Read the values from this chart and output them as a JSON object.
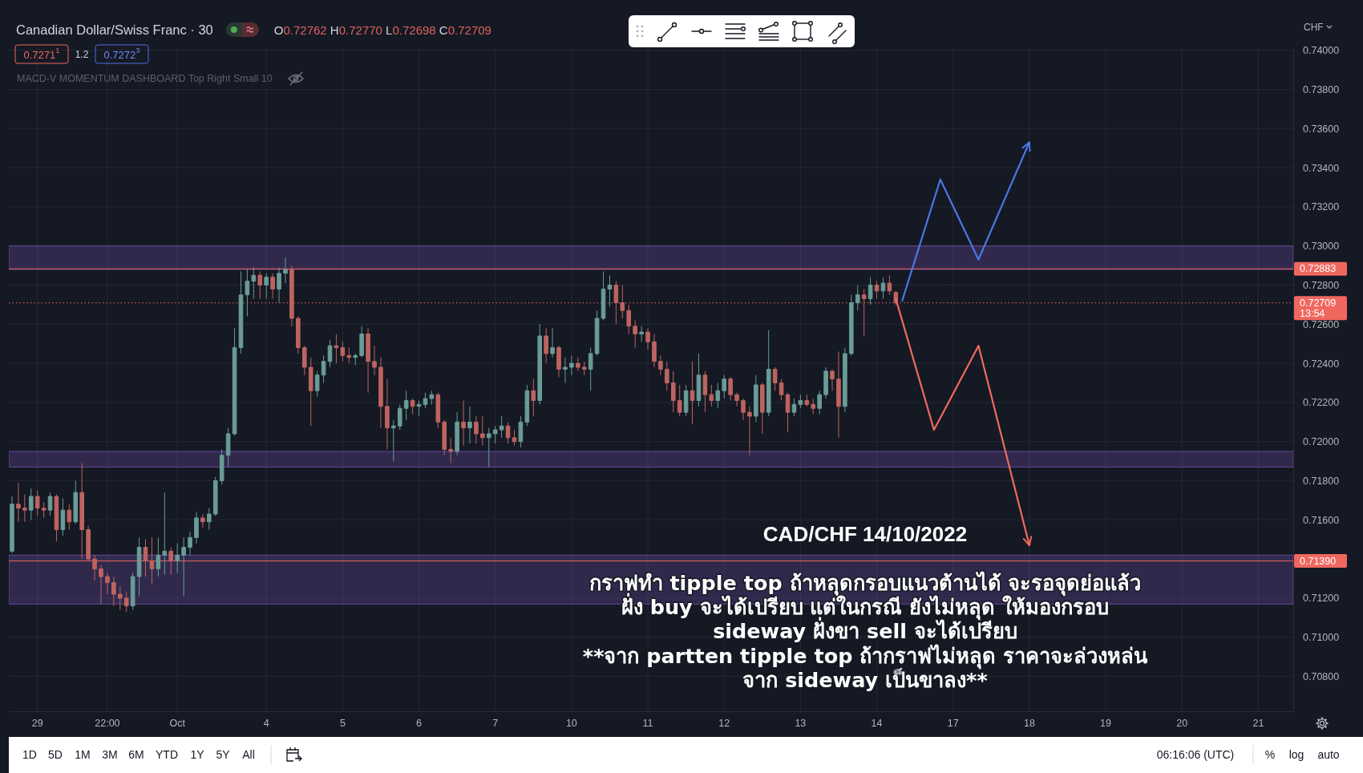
{
  "chart_data": {
    "type": "candlestick",
    "title": "Canadian Dollar/Swiss Franc · 30",
    "subtitle": "O0.72762 H0.72770 L0.72698 C0.72709",
    "ylabel": "CHF",
    "annotations": [
      "0.7271$^{1}$",
      "1.2",
      "0.7272$^{3}$",
      "MACD-V MOMENTUM DASHBOARD Top Right Small 10",
      "CAD/CHF 14/10/2022",
      "กราฟทำ tipple top ถ้าหลุดกรอบแนวต้านได้ จะรอจุดย่อแล้ว\nฝั่ง buy จะได้เปรียบ แต่ในกรณี ยังไม่หลุด ให้มองกรอบ\nsideway ฝั่งขา sell จะได้เปรียบ\n**จาก partten tipple top ถ้ากราฟไม่หลุด ราคาจะล่วงหล่น\nจาก sideway เป็นขาลง**",
      "1D",
      "5D",
      "1M",
      "3M",
      "6M",
      "YTD",
      "1Y",
      "5Y",
      "All",
      "06:16:06 (UTC)",
      "%",
      "log",
      "auto"
    ],
    "categories": [
      null,
      null,
      null,
      null,
      "29",
      null,
      null,
      null,
      null,
      null,
      null,
      null,
      null,
      null,
      null,
      "22:00",
      null,
      null,
      null,
      null,
      null,
      null,
      null,
      null,
      null,
      null,
      "Oct",
      null,
      null,
      null,
      null,
      null,
      null,
      null,
      null,
      null,
      null,
      null,
      null,
      null,
      "4",
      null,
      null,
      null,
      null,
      null,
      null,
      null,
      null,
      null,
      null,
      null,
      "5",
      null,
      null,
      null,
      null,
      null,
      null,
      null,
      null,
      null,
      null,
      null,
      "6",
      null,
      null,
      null,
      null,
      null,
      null,
      null,
      null,
      null,
      null,
      null,
      "7",
      null,
      null,
      null,
      null,
      null,
      null,
      null,
      null,
      null,
      null,
      null,
      "10",
      null,
      null,
      null,
      null,
      null,
      null,
      null,
      null,
      null,
      null,
      null,
      "11",
      null,
      null,
      null,
      null,
      null,
      null,
      null,
      null,
      null,
      null,
      null,
      "12",
      null,
      null,
      null,
      null,
      null,
      null,
      null,
      null,
      null,
      null,
      null,
      "13",
      null,
      null,
      null,
      null,
      null,
      null,
      null,
      null,
      null,
      null,
      null,
      "14",
      null,
      null,
      null,
      null,
      null,
      null,
      null,
      null,
      null,
      null,
      null,
      "17",
      null,
      null,
      null,
      null,
      null,
      null,
      null,
      null,
      null,
      null,
      null,
      "18",
      null,
      null,
      null,
      null,
      null,
      null,
      null,
      null,
      null,
      null,
      null,
      "19",
      null,
      null,
      null,
      null,
      null,
      null,
      null,
      null,
      null,
      null,
      null,
      "20",
      null,
      null,
      null,
      null,
      null,
      null,
      null,
      null,
      null,
      null,
      null,
      "21",
      null,
      null,
      null,
      null,
      null
    ],
    "ohlc": [
      [
        0.7144,
        0.7172,
        0.7143,
        0.7168
      ],
      [
        0.7168,
        0.7179,
        0.7159,
        0.7166
      ],
      [
        0.7166,
        0.7173,
        0.7159,
        0.7165
      ],
      [
        0.7165,
        0.7176,
        0.716,
        0.7172
      ],
      [
        0.7172,
        0.7175,
        0.7162,
        0.7166
      ],
      [
        0.7166,
        0.7169,
        0.7161,
        0.7165
      ],
      [
        0.7165,
        0.7174,
        0.7162,
        0.7172
      ],
      [
        0.7172,
        0.7173,
        0.7149,
        0.7155
      ],
      [
        0.7155,
        0.7171,
        0.7152,
        0.7165
      ],
      [
        0.7165,
        0.7168,
        0.7155,
        0.7159
      ],
      [
        0.7159,
        0.718,
        0.7158,
        0.7174
      ],
      [
        0.7174,
        0.7189,
        0.714,
        0.7155
      ],
      [
        0.7155,
        0.7157,
        0.7139,
        0.714
      ],
      [
        0.714,
        0.7142,
        0.7129,
        0.7135
      ],
      [
        0.7135,
        0.7137,
        0.7117,
        0.7131
      ],
      [
        0.7131,
        0.7133,
        0.7122,
        0.7128
      ],
      [
        0.7128,
        0.7131,
        0.7116,
        0.7122
      ],
      [
        0.7122,
        0.7126,
        0.7114,
        0.712
      ],
      [
        0.712,
        0.7123,
        0.7113,
        0.7116
      ],
      [
        0.7116,
        0.7133,
        0.7114,
        0.7131
      ],
      [
        0.7131,
        0.7151,
        0.7121,
        0.7146
      ],
      [
        0.7146,
        0.715,
        0.7131,
        0.7139
      ],
      [
        0.7139,
        0.7151,
        0.7127,
        0.7135
      ],
      [
        0.7135,
        0.7151,
        0.7131,
        0.7142
      ],
      [
        0.7142,
        0.7174,
        0.7132,
        0.7144
      ],
      [
        0.7144,
        0.7146,
        0.7132,
        0.7139
      ],
      [
        0.7139,
        0.7148,
        0.7133,
        0.7142
      ],
      [
        0.7142,
        0.7151,
        0.7121,
        0.7146
      ],
      [
        0.7146,
        0.7154,
        0.7142,
        0.7151
      ],
      [
        0.7151,
        0.7164,
        0.7148,
        0.7161
      ],
      [
        0.7161,
        0.7163,
        0.7156,
        0.7159
      ],
      [
        0.7159,
        0.7166,
        0.7155,
        0.7163
      ],
      [
        0.7163,
        0.7182,
        0.7162,
        0.718
      ],
      [
        0.718,
        0.7196,
        0.7178,
        0.7193
      ],
      [
        0.7193,
        0.7207,
        0.7187,
        0.7204
      ],
      [
        0.7204,
        0.7258,
        0.7203,
        0.7248
      ],
      [
        0.7248,
        0.7287,
        0.7245,
        0.7275
      ],
      [
        0.7275,
        0.7288,
        0.7264,
        0.7282
      ],
      [
        0.7282,
        0.7289,
        0.7273,
        0.7285
      ],
      [
        0.7285,
        0.7287,
        0.7273,
        0.728
      ],
      [
        0.728,
        0.7286,
        0.7273,
        0.7284
      ],
      [
        0.7284,
        0.7286,
        0.7273,
        0.7278
      ],
      [
        0.7278,
        0.7289,
        0.7271,
        0.7286
      ],
      [
        0.7286,
        0.7294,
        0.7281,
        0.7288
      ],
      [
        0.7288,
        0.729,
        0.7259,
        0.7263
      ],
      [
        0.7263,
        0.7264,
        0.7245,
        0.7248
      ],
      [
        0.7248,
        0.7249,
        0.7234,
        0.7238
      ],
      [
        0.7238,
        0.7243,
        0.7208,
        0.7226
      ],
      [
        0.7226,
        0.7236,
        0.7223,
        0.7234
      ],
      [
        0.7234,
        0.7244,
        0.723,
        0.7241
      ],
      [
        0.7241,
        0.7252,
        0.7238,
        0.7249
      ],
      [
        0.7249,
        0.7255,
        0.724,
        0.7248
      ],
      [
        0.7248,
        0.7251,
        0.7241,
        0.7244
      ],
      [
        0.7244,
        0.7248,
        0.724,
        0.7243
      ],
      [
        0.7243,
        0.7245,
        0.7239,
        0.7244
      ],
      [
        0.7244,
        0.7259,
        0.7243,
        0.7255
      ],
      [
        0.7255,
        0.7258,
        0.7225,
        0.7241
      ],
      [
        0.7241,
        0.7249,
        0.7234,
        0.7238
      ],
      [
        0.7238,
        0.7243,
        0.7207,
        0.7218
      ],
      [
        0.7218,
        0.7232,
        0.7196,
        0.7207
      ],
      [
        0.7207,
        0.7211,
        0.719,
        0.7208
      ],
      [
        0.7208,
        0.7219,
        0.7206,
        0.7217
      ],
      [
        0.7217,
        0.7226,
        0.7211,
        0.7221
      ],
      [
        0.7221,
        0.7222,
        0.7214,
        0.7218
      ],
      [
        0.7218,
        0.7221,
        0.7213,
        0.7219
      ],
      [
        0.7219,
        0.7225,
        0.7217,
        0.7222
      ],
      [
        0.7222,
        0.7226,
        0.7219,
        0.7224
      ],
      [
        0.7224,
        0.7225,
        0.7207,
        0.721
      ],
      [
        0.721,
        0.7211,
        0.7193,
        0.7196
      ],
      [
        0.7196,
        0.7202,
        0.7189,
        0.7195
      ],
      [
        0.7195,
        0.7215,
        0.7193,
        0.721
      ],
      [
        0.721,
        0.7221,
        0.7198,
        0.7207
      ],
      [
        0.7207,
        0.7218,
        0.7199,
        0.721
      ],
      [
        0.721,
        0.7213,
        0.7199,
        0.7204
      ],
      [
        0.7204,
        0.7213,
        0.7198,
        0.7202
      ],
      [
        0.7202,
        0.7207,
        0.7187,
        0.7204
      ],
      [
        0.7204,
        0.7208,
        0.7199,
        0.7206
      ],
      [
        0.7206,
        0.7213,
        0.7202,
        0.7208
      ],
      [
        0.7208,
        0.721,
        0.7199,
        0.7202
      ],
      [
        0.7202,
        0.7206,
        0.7198,
        0.72
      ],
      [
        0.72,
        0.7213,
        0.7197,
        0.721
      ],
      [
        0.721,
        0.7229,
        0.7208,
        0.7226
      ],
      [
        0.7226,
        0.7232,
        0.7213,
        0.7221
      ],
      [
        0.7221,
        0.726,
        0.7219,
        0.7254
      ],
      [
        0.7254,
        0.7258,
        0.724,
        0.7245
      ],
      [
        0.7245,
        0.7258,
        0.7243,
        0.7248
      ],
      [
        0.7248,
        0.7249,
        0.7233,
        0.7237
      ],
      [
        0.7237,
        0.7243,
        0.723,
        0.7238
      ],
      [
        0.7238,
        0.7244,
        0.7234,
        0.724
      ],
      [
        0.724,
        0.7243,
        0.7236,
        0.7238
      ],
      [
        0.7238,
        0.7241,
        0.7234,
        0.7237
      ],
      [
        0.7237,
        0.7248,
        0.7226,
        0.7245
      ],
      [
        0.7245,
        0.7267,
        0.7244,
        0.7263
      ],
      [
        0.7263,
        0.7287,
        0.7262,
        0.7278
      ],
      [
        0.7278,
        0.7285,
        0.7269,
        0.728
      ],
      [
        0.728,
        0.7282,
        0.726,
        0.7271
      ],
      [
        0.7271,
        0.728,
        0.7263,
        0.7267
      ],
      [
        0.7267,
        0.727,
        0.7255,
        0.7259
      ],
      [
        0.7259,
        0.7262,
        0.7248,
        0.7255
      ],
      [
        0.7255,
        0.7259,
        0.7251,
        0.7256
      ],
      [
        0.7256,
        0.7258,
        0.7247,
        0.7251
      ],
      [
        0.7251,
        0.7255,
        0.7238,
        0.7241
      ],
      [
        0.7241,
        0.7244,
        0.7234,
        0.7237
      ],
      [
        0.7237,
        0.7241,
        0.7226,
        0.723
      ],
      [
        0.723,
        0.7236,
        0.7215,
        0.7221
      ],
      [
        0.7221,
        0.7229,
        0.7213,
        0.7215
      ],
      [
        0.7215,
        0.7229,
        0.7213,
        0.7226
      ],
      [
        0.7226,
        0.7241,
        0.7209,
        0.7221
      ],
      [
        0.7221,
        0.7245,
        0.7218,
        0.7234
      ],
      [
        0.7234,
        0.7236,
        0.7215,
        0.7224
      ],
      [
        0.7224,
        0.7229,
        0.7218,
        0.7221
      ],
      [
        0.7221,
        0.723,
        0.7217,
        0.7226
      ],
      [
        0.7226,
        0.7234,
        0.7222,
        0.7232
      ],
      [
        0.7232,
        0.7233,
        0.7221,
        0.7224
      ],
      [
        0.7224,
        0.7225,
        0.7218,
        0.7221
      ],
      [
        0.7221,
        0.7222,
        0.7211,
        0.7215
      ],
      [
        0.7215,
        0.7218,
        0.7193,
        0.7213
      ],
      [
        0.7213,
        0.7234,
        0.721,
        0.7229
      ],
      [
        0.7229,
        0.723,
        0.7204,
        0.7215
      ],
      [
        0.7215,
        0.7257,
        0.7213,
        0.7237
      ],
      [
        0.7237,
        0.7238,
        0.7226,
        0.723
      ],
      [
        0.723,
        0.7232,
        0.7221,
        0.7224
      ],
      [
        0.7224,
        0.7225,
        0.7205,
        0.7215
      ],
      [
        0.7215,
        0.7222,
        0.7213,
        0.7219
      ],
      [
        0.7219,
        0.7224,
        0.7217,
        0.7221
      ],
      [
        0.7221,
        0.7224,
        0.7218,
        0.7219
      ],
      [
        0.7219,
        0.7222,
        0.7214,
        0.7217
      ],
      [
        0.7217,
        0.7226,
        0.7214,
        0.7224
      ],
      [
        0.7224,
        0.7238,
        0.7222,
        0.7236
      ],
      [
        0.7236,
        0.7237,
        0.7226,
        0.7232
      ],
      [
        0.7232,
        0.7246,
        0.7202,
        0.7218
      ],
      [
        0.7218,
        0.7248,
        0.7215,
        0.7245
      ],
      [
        0.7245,
        0.7275,
        0.7244,
        0.7271
      ],
      [
        0.7271,
        0.728,
        0.7267,
        0.7275
      ],
      [
        0.7275,
        0.7278,
        0.7254,
        0.7273
      ],
      [
        0.7273,
        0.7284,
        0.727,
        0.728
      ],
      [
        0.728,
        0.7282,
        0.7273,
        0.7277
      ],
      [
        0.7277,
        0.7284,
        0.7273,
        0.7281
      ],
      [
        0.7281,
        0.7285,
        0.7275,
        0.7277
      ],
      [
        0.72762,
        0.7277,
        0.72698,
        0.72709
      ],
      null,
      null,
      null,
      null,
      null,
      null,
      null,
      null,
      null,
      null,
      null,
      null,
      null,
      null,
      null,
      null,
      null,
      null,
      null,
      null,
      null,
      null,
      null,
      null,
      null,
      null,
      null,
      null,
      null,
      null,
      null,
      null,
      null,
      null,
      null,
      null,
      null,
      null,
      null,
      null,
      null,
      null,
      null,
      null,
      null,
      null,
      null,
      null,
      null,
      null,
      null,
      null,
      null,
      null,
      null,
      null,
      null,
      null,
      null,
      null,
      null,
      null
    ],
    "series": [
      {
        "type": "line",
        "color": "#4a78e6",
        "values": [
          null,
          null,
          null,
          null,
          null,
          null,
          null,
          null,
          null,
          null,
          null,
          null,
          null,
          null,
          null,
          null,
          null,
          null,
          null,
          null,
          null,
          null,
          null,
          null,
          null,
          null,
          null,
          null,
          null,
          null,
          null,
          null,
          null,
          null,
          null,
          null,
          null,
          null,
          null,
          null,
          null,
          null,
          null,
          null,
          null,
          null,
          null,
          null,
          null,
          null,
          null,
          null,
          null,
          null,
          null,
          null,
          null,
          null,
          null,
          null,
          null,
          null,
          null,
          null,
          null,
          null,
          null,
          null,
          null,
          null,
          null,
          null,
          null,
          null,
          null,
          null,
          null,
          null,
          null,
          null,
          null,
          null,
          null,
          null,
          null,
          null,
          null,
          null,
          null,
          null,
          null,
          null,
          null,
          null,
          null,
          null,
          null,
          null,
          null,
          null,
          null,
          null,
          null,
          null,
          null,
          null,
          null,
          null,
          null,
          null,
          null,
          null,
          null,
          null,
          null,
          null,
          null,
          null,
          null,
          null,
          null,
          null,
          null,
          null,
          null,
          null,
          null,
          null,
          null,
          null,
          null,
          null,
          null,
          null,
          null,
          null,
          null,
          null,
          null,
          null,
          0.7272,
          null,
          null,
          null,
          null,
          null,
          0.7334,
          null,
          null,
          null,
          null,
          null,
          0.7293,
          null,
          null,
          null,
          null,
          null,
          null,
          null,
          0.7353,
          null,
          null,
          null,
          null,
          null,
          null,
          null,
          null,
          null,
          null,
          null,
          null,
          null,
          null,
          null,
          null,
          null,
          null,
          null,
          null,
          null,
          null,
          null,
          null,
          null,
          null,
          null,
          null,
          null,
          null,
          null,
          null,
          null,
          null,
          null,
          null,
          null,
          null,
          null,
          null,
          null
        ]
      },
      {
        "type": "line",
        "color": "#ef6a5f",
        "values": [
          null,
          null,
          null,
          null,
          null,
          null,
          null,
          null,
          null,
          null,
          null,
          null,
          null,
          null,
          null,
          null,
          null,
          null,
          null,
          null,
          null,
          null,
          null,
          null,
          null,
          null,
          null,
          null,
          null,
          null,
          null,
          null,
          null,
          null,
          null,
          null,
          null,
          null,
          null,
          null,
          null,
          null,
          null,
          null,
          null,
          null,
          null,
          null,
          null,
          null,
          null,
          null,
          null,
          null,
          null,
          null,
          null,
          null,
          null,
          null,
          null,
          null,
          null,
          null,
          null,
          null,
          null,
          null,
          null,
          null,
          null,
          null,
          null,
          null,
          null,
          null,
          null,
          null,
          null,
          null,
          null,
          null,
          null,
          null,
          null,
          null,
          null,
          null,
          null,
          null,
          null,
          null,
          null,
          null,
          null,
          null,
          null,
          null,
          null,
          null,
          null,
          null,
          null,
          null,
          null,
          null,
          null,
          null,
          null,
          null,
          null,
          null,
          null,
          null,
          null,
          null,
          null,
          null,
          null,
          null,
          null,
          null,
          null,
          null,
          null,
          null,
          null,
          null,
          null,
          null,
          null,
          null,
          null,
          null,
          null,
          null,
          null,
          null,
          null,
          0.7273,
          null,
          null,
          null,
          null,
          null,
          0.7206,
          null,
          null,
          null,
          null,
          null,
          null,
          0.7249,
          null,
          null,
          null,
          null,
          null,
          null,
          null,
          0.7147,
          null,
          null,
          null,
          null,
          null,
          null,
          null,
          null,
          null,
          null,
          null,
          null,
          null,
          null,
          null,
          null,
          null,
          null,
          null,
          null,
          null,
          null,
          null,
          null,
          null,
          null,
          null,
          null,
          null,
          null,
          null,
          null,
          null,
          null,
          null,
          null,
          null,
          null,
          null,
          null,
          null
        ]
      }
    ],
    "ylim": [
      0.70622,
      0.74011
    ],
    "yticks": [
      {
        "value": 0.708,
        "label": "0.70800"
      },
      {
        "value": 0.71,
        "label": "0.71000"
      },
      {
        "value": 0.712,
        "label": "0.71200"
      },
      {
        "value": 0.714,
        "label": null
      },
      {
        "value": 0.716,
        "label": "0.71600"
      },
      {
        "value": 0.718,
        "label": "0.71800"
      },
      {
        "value": 0.72,
        "label": "0.72000"
      },
      {
        "value": 0.722,
        "label": "0.72200"
      },
      {
        "value": 0.724,
        "label": "0.72400"
      },
      {
        "value": 0.726,
        "label": "0.72600"
      },
      {
        "value": 0.728,
        "label": "0.72800"
      },
      {
        "value": 0.73,
        "label": "0.73000"
      },
      {
        "value": 0.732,
        "label": "0.73200"
      },
      {
        "value": 0.734,
        "label": "0.73400"
      },
      {
        "value": 0.736,
        "label": "0.73600"
      },
      {
        "value": 0.738,
        "label": "0.73800"
      },
      {
        "value": 0.74,
        "label": "0.74000"
      }
    ],
    "grid": true,
    "ref_lines": [
      {
        "axis": "y",
        "value": 0.72883,
        "label": "0.72883",
        "color": "#f0675f"
      },
      {
        "axis": "y",
        "value": 0.72709,
        "label": "0.72709\n13:54",
        "color": "#f0675f",
        "line_style": "dotted"
      },
      {
        "axis": "y",
        "value": 0.7139,
        "label": "0.71390",
        "color": "#f0675f"
      }
    ],
    "bands": [
      {
        "axis": "y",
        "from": 0.7288,
        "to": 0.73,
        "color": "#7e57c2"
      },
      {
        "axis": "y",
        "from": 0.7187,
        "to": 0.7195,
        "color": "#7e57c2"
      },
      {
        "axis": "y",
        "from": 0.7117,
        "to": 0.7142,
        "color": "#7e57c2"
      }
    ]
  }
}
